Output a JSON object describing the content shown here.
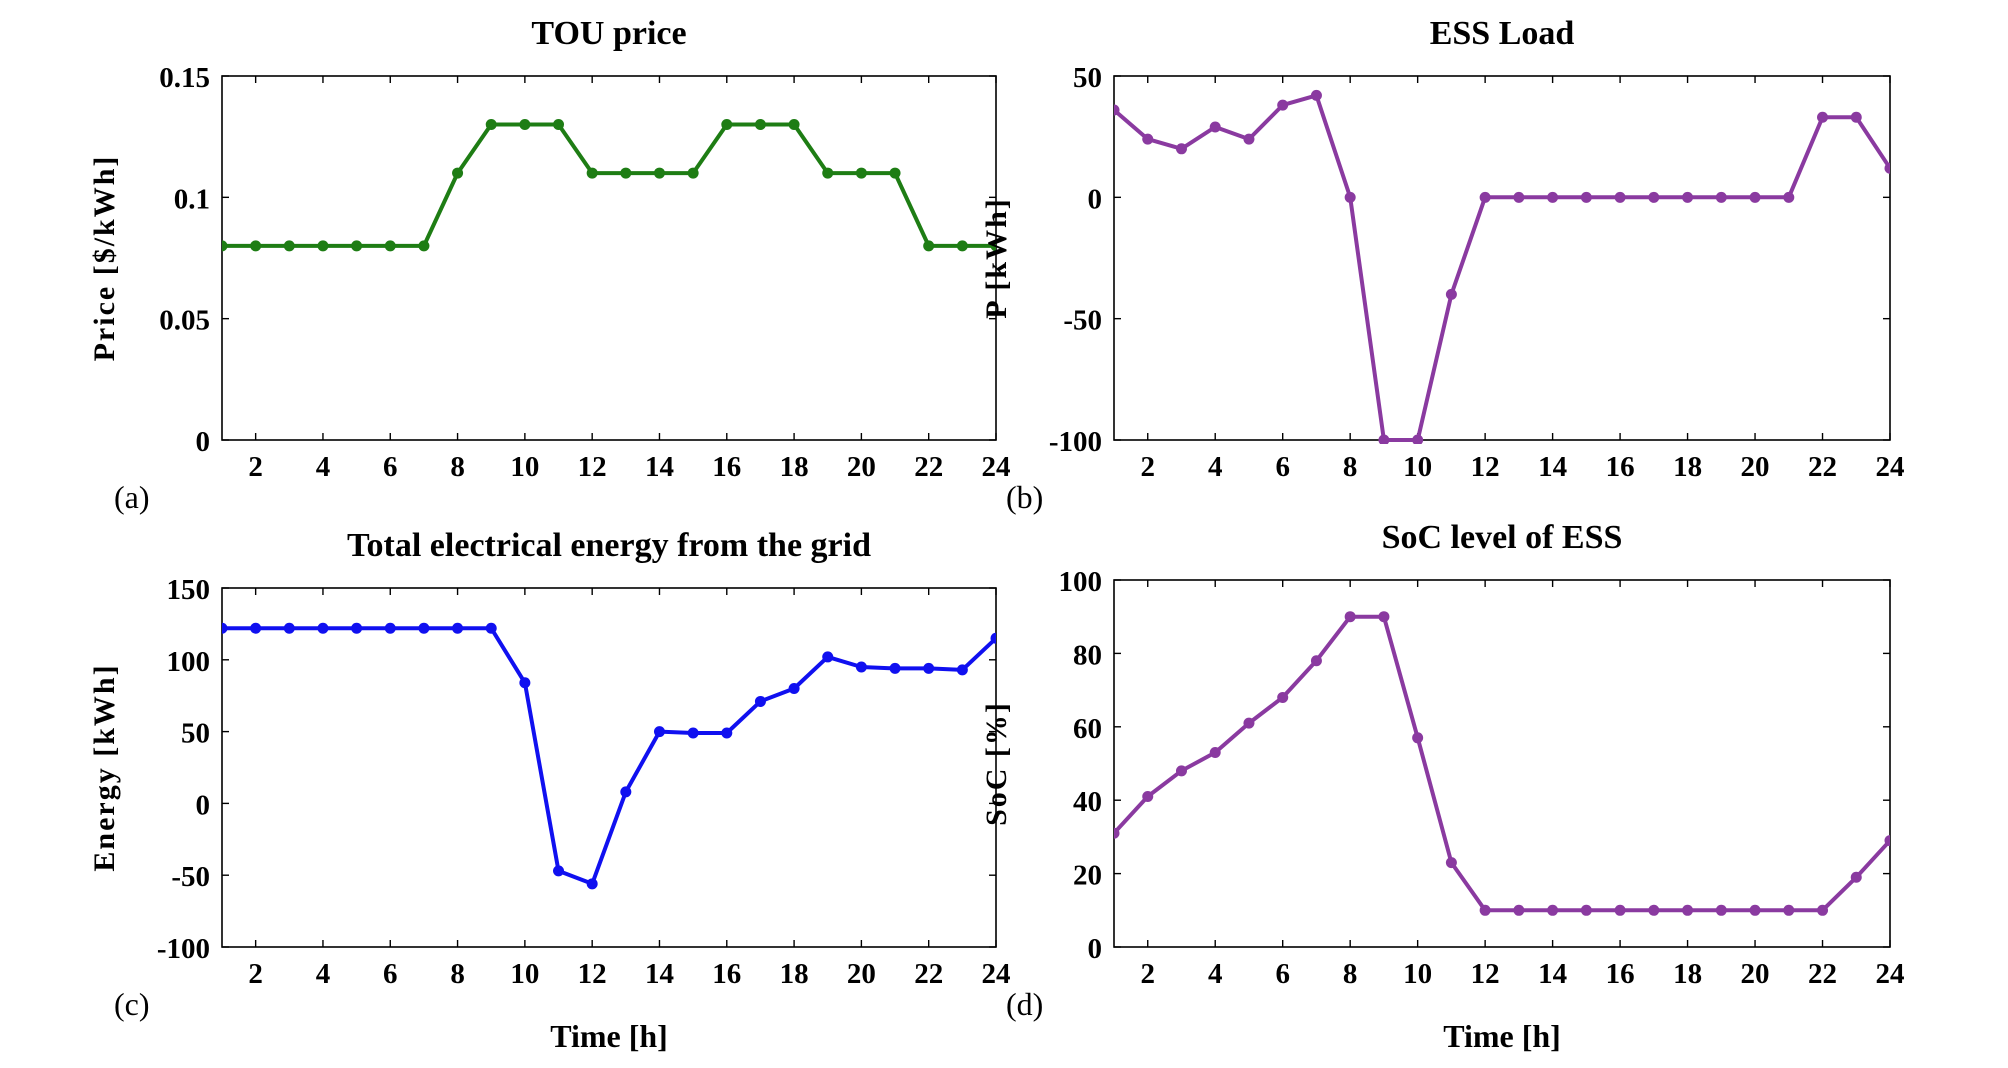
{
  "chart_data": [
    {
      "id": "a",
      "type": "line",
      "panel_label": "(a)",
      "title": "TOU price",
      "xlabel": "",
      "ylabel": "Price [$/kWh]",
      "xlim": [
        1,
        24
      ],
      "ylim": [
        0,
        0.15
      ],
      "xticks": [
        2,
        4,
        6,
        8,
        10,
        12,
        14,
        16,
        18,
        20,
        22,
        24
      ],
      "xtick_labels": [
        "2",
        "4",
        "6",
        "8",
        "10",
        "12",
        "14",
        "16",
        "18",
        "20",
        "22",
        "24"
      ],
      "yticks": [
        0,
        0.05,
        0.1,
        0.15
      ],
      "ytick_labels": [
        "0",
        "0.05",
        "0.1",
        "0.15"
      ],
      "color": "#1e7d14",
      "x": [
        1,
        2,
        3,
        4,
        5,
        6,
        7,
        8,
        9,
        10,
        11,
        12,
        13,
        14,
        15,
        16,
        17,
        18,
        19,
        20,
        21,
        22,
        23,
        24
      ],
      "y": [
        0.08,
        0.08,
        0.08,
        0.08,
        0.08,
        0.08,
        0.08,
        0.11,
        0.13,
        0.13,
        0.13,
        0.11,
        0.11,
        0.11,
        0.11,
        0.13,
        0.13,
        0.13,
        0.11,
        0.11,
        0.11,
        0.08,
        0.08,
        0.08
      ]
    },
    {
      "id": "b",
      "type": "line",
      "panel_label": "(b)",
      "title": "ESS Load",
      "xlabel": "",
      "ylabel": "P [kWh]",
      "xlim": [
        1,
        24
      ],
      "ylim": [
        -100,
        50
      ],
      "xticks": [
        2,
        4,
        6,
        8,
        10,
        12,
        14,
        16,
        18,
        20,
        22,
        24
      ],
      "xtick_labels": [
        "2",
        "4",
        "6",
        "8",
        "10",
        "12",
        "14",
        "16",
        "18",
        "20",
        "22",
        "24"
      ],
      "yticks": [
        -100,
        -50,
        0,
        50
      ],
      "ytick_labels": [
        "-100",
        "-50",
        "0",
        "50"
      ],
      "color": "#8a3aa0",
      "x": [
        1,
        2,
        3,
        4,
        5,
        6,
        7,
        8,
        9,
        10,
        11,
        12,
        13,
        14,
        15,
        16,
        17,
        18,
        19,
        20,
        21,
        22,
        23,
        24
      ],
      "y": [
        36,
        24,
        20,
        29,
        24,
        38,
        42,
        0,
        -100,
        -100,
        -40,
        0,
        0,
        0,
        0,
        0,
        0,
        0,
        0,
        0,
        0,
        33,
        33,
        12
      ]
    },
    {
      "id": "c",
      "type": "line",
      "panel_label": "(c)",
      "title": "Total electrical energy from the grid",
      "xlabel": "Time [h]",
      "ylabel": "Energy [kWh]",
      "xlim": [
        1,
        24
      ],
      "ylim": [
        -100,
        150
      ],
      "xticks": [
        2,
        4,
        6,
        8,
        10,
        12,
        14,
        16,
        18,
        20,
        22,
        24
      ],
      "xtick_labels": [
        "2",
        "4",
        "6",
        "8",
        "10",
        "12",
        "14",
        "16",
        "18",
        "20",
        "22",
        "24"
      ],
      "yticks": [
        -100,
        -50,
        0,
        50,
        100,
        150
      ],
      "ytick_labels": [
        "-100",
        "-50",
        "0",
        "50",
        "100",
        "150"
      ],
      "color": "#1010f0",
      "x": [
        1,
        2,
        3,
        4,
        5,
        6,
        7,
        8,
        9,
        10,
        11,
        12,
        13,
        14,
        15,
        16,
        17,
        18,
        19,
        20,
        21,
        22,
        23,
        24
      ],
      "y": [
        122,
        122,
        122,
        122,
        122,
        122,
        122,
        122,
        122,
        84,
        -47,
        -56,
        8,
        50,
        49,
        49,
        71,
        80,
        102,
        95,
        94,
        94,
        93,
        115
      ]
    },
    {
      "id": "d",
      "type": "line",
      "panel_label": "(d)",
      "title": "SoC level of ESS",
      "xlabel": "Time [h]",
      "ylabel": "SoC [%]",
      "xlim": [
        1,
        24
      ],
      "ylim": [
        0,
        100
      ],
      "xticks": [
        2,
        4,
        6,
        8,
        10,
        12,
        14,
        16,
        18,
        20,
        22,
        24
      ],
      "xtick_labels": [
        "2",
        "4",
        "6",
        "8",
        "10",
        "12",
        "14",
        "16",
        "18",
        "20",
        "22",
        "24"
      ],
      "yticks": [
        0,
        20,
        40,
        60,
        80,
        100
      ],
      "ytick_labels": [
        "0",
        "20",
        "40",
        "60",
        "80",
        "100"
      ],
      "color": "#8a3aa0",
      "x": [
        1,
        2,
        3,
        4,
        5,
        6,
        7,
        8,
        9,
        10,
        11,
        12,
        13,
        14,
        15,
        16,
        17,
        18,
        19,
        20,
        21,
        22,
        23,
        24
      ],
      "y": [
        31,
        41,
        48,
        53,
        61,
        68,
        78,
        90,
        90,
        57,
        23,
        10,
        10,
        10,
        10,
        10,
        10,
        10,
        10,
        10,
        10,
        10,
        19,
        29
      ]
    }
  ]
}
